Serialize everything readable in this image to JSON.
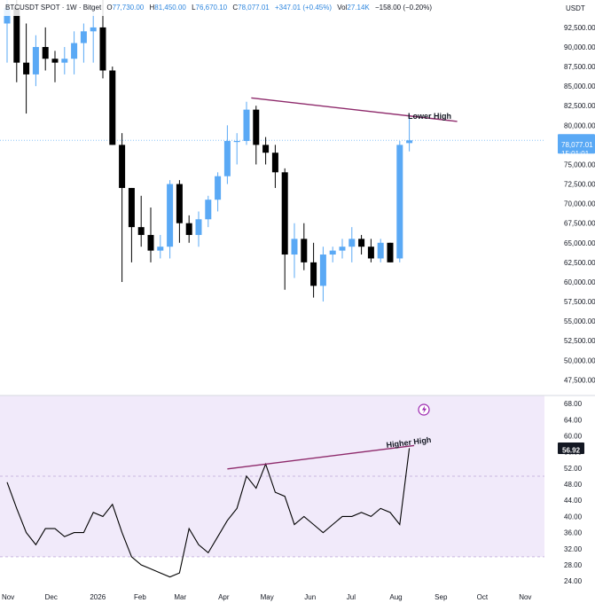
{
  "header": {
    "symbol": "BTCUSDT SPOT · 1W · Bitget",
    "o_label": "O",
    "open": "77,730.00",
    "h_label": "H",
    "high": "81,450.00",
    "l_label": "L",
    "low": "76,670.10",
    "c_label": "C",
    "close": "78,077.01",
    "change": "+347.01 (+0.45%)",
    "vol_label": "Vol",
    "volume": "27.14K",
    "delta": "−158.00 (−0.20%)"
  },
  "currency": "USDT",
  "price_tag": {
    "value": "78,077.01",
    "countdown": "15:01:01",
    "color": "#5aa9f5"
  },
  "rsi_tag": {
    "value": "56.92",
    "color": "#131722"
  },
  "colors": {
    "up": "#5aa9f5",
    "down": "#000000",
    "trendline": "#8e2a6b",
    "rsi_line": "#000000",
    "rsi_band": "#f1eafa"
  },
  "chart_data": [
    {
      "type": "candlestick",
      "title": "BTCUSDT SPOT · 1W · Bitget",
      "y_ticks": [
        47500,
        50000,
        52500,
        55000,
        57500,
        60000,
        62500,
        65000,
        67500,
        70000,
        72500,
        75000,
        77500,
        80000,
        82500,
        85000,
        87500,
        90000,
        92500
      ],
      "ylim": [
        45500,
        96000
      ],
      "x_ticks": [
        {
          "label": "Nov",
          "index": 0
        },
        {
          "label": "Dec",
          "index": 4.5
        },
        {
          "label": "2026",
          "index": 9.2
        },
        {
          "label": "Feb",
          "index": 13.8
        },
        {
          "label": "Mar",
          "index": 18
        },
        {
          "label": "Apr",
          "index": 22.6
        },
        {
          "label": "May",
          "index": 27
        },
        {
          "label": "Jun",
          "index": 31.6
        },
        {
          "label": "Jul",
          "index": 36
        },
        {
          "label": "Aug",
          "index": 40.5
        },
        {
          "label": "Sep",
          "index": 45.2
        },
        {
          "label": "Oct",
          "index": 49.6
        },
        {
          "label": "Nov",
          "index": 54
        }
      ],
      "candles": [
        {
          "o": 93000,
          "h": 98000,
          "l": 88000,
          "c": 95000
        },
        {
          "o": 95000,
          "h": 96000,
          "l": 85500,
          "c": 88000
        },
        {
          "o": 88000,
          "h": 93000,
          "l": 81500,
          "c": 86500
        },
        {
          "o": 86500,
          "h": 91500,
          "l": 85000,
          "c": 90000
        },
        {
          "o": 90000,
          "h": 92500,
          "l": 87000,
          "c": 88500
        },
        {
          "o": 88500,
          "h": 89500,
          "l": 85500,
          "c": 88000
        },
        {
          "o": 88000,
          "h": 90000,
          "l": 86500,
          "c": 88500
        },
        {
          "o": 88500,
          "h": 92000,
          "l": 86500,
          "c": 90500
        },
        {
          "o": 90500,
          "h": 93000,
          "l": 88000,
          "c": 92000
        },
        {
          "o": 92000,
          "h": 94500,
          "l": 88000,
          "c": 92500
        },
        {
          "o": 92500,
          "h": 96000,
          "l": 86000,
          "c": 87000
        },
        {
          "o": 87000,
          "h": 87500,
          "l": 77500,
          "c": 77500
        },
        {
          "o": 77500,
          "h": 79000,
          "l": 60000,
          "c": 72000
        },
        {
          "o": 72000,
          "h": 72000,
          "l": 62500,
          "c": 67000
        },
        {
          "o": 67000,
          "h": 71000,
          "l": 64500,
          "c": 66000
        },
        {
          "o": 66000,
          "h": 69500,
          "l": 62500,
          "c": 64000
        },
        {
          "o": 64000,
          "h": 66000,
          "l": 63000,
          "c": 64500
        },
        {
          "o": 64500,
          "h": 73000,
          "l": 63000,
          "c": 72500
        },
        {
          "o": 72500,
          "h": 73000,
          "l": 65000,
          "c": 67500
        },
        {
          "o": 67500,
          "h": 68500,
          "l": 65000,
          "c": 66000
        },
        {
          "o": 66000,
          "h": 69000,
          "l": 64500,
          "c": 68000
        },
        {
          "o": 68000,
          "h": 71000,
          "l": 67000,
          "c": 70500
        },
        {
          "o": 70500,
          "h": 74000,
          "l": 69000,
          "c": 73500
        },
        {
          "o": 73500,
          "h": 80000,
          "l": 72500,
          "c": 78000
        },
        {
          "o": 78000,
          "h": 79000,
          "l": 75000,
          "c": 78000
        },
        {
          "o": 78000,
          "h": 83000,
          "l": 77500,
          "c": 82000
        },
        {
          "o": 82000,
          "h": 82500,
          "l": 75000,
          "c": 77500
        },
        {
          "o": 77500,
          "h": 78500,
          "l": 75000,
          "c": 76500
        },
        {
          "o": 76500,
          "h": 77500,
          "l": 72000,
          "c": 74000
        },
        {
          "o": 74000,
          "h": 74500,
          "l": 59000,
          "c": 63500
        },
        {
          "o": 63500,
          "h": 67500,
          "l": 60500,
          "c": 65500
        },
        {
          "o": 65500,
          "h": 67500,
          "l": 61500,
          "c": 62500
        },
        {
          "o": 62500,
          "h": 65000,
          "l": 58000,
          "c": 59500
        },
        {
          "o": 59500,
          "h": 64500,
          "l": 57500,
          "c": 63500
        },
        {
          "o": 63500,
          "h": 64500,
          "l": 62500,
          "c": 64000
        },
        {
          "o": 64000,
          "h": 65500,
          "l": 63000,
          "c": 64500
        },
        {
          "o": 64500,
          "h": 67000,
          "l": 62500,
          "c": 65500
        },
        {
          "o": 65500,
          "h": 66000,
          "l": 63500,
          "c": 64500
        },
        {
          "o": 64500,
          "h": 65500,
          "l": 62500,
          "c": 63000
        },
        {
          "o": 63000,
          "h": 65500,
          "l": 62500,
          "c": 65000
        },
        {
          "o": 65000,
          "h": 65000,
          "l": 62500,
          "c": 62500
        },
        {
          "o": 63000,
          "h": 78000,
          "l": 62500,
          "c": 77500
        },
        {
          "o": 77730,
          "h": 81450,
          "l": 76670.1,
          "c": 78077.01
        }
      ],
      "trendline": {
        "label": "Lower High",
        "from": {
          "index": 25.5,
          "value": 83500
        },
        "to": {
          "index": 47,
          "value": 80500
        }
      }
    },
    {
      "type": "line",
      "title": "",
      "y_ticks": [
        24.0,
        28.0,
        32.0,
        36.0,
        40.0,
        44.0,
        48.0,
        52.0,
        56.0,
        60.0,
        64.0,
        68.0
      ],
      "ylim": [
        22.5,
        70
      ],
      "band": [
        30,
        70
      ],
      "series": [
        {
          "name": "",
          "values": [
            48.5,
            42,
            36,
            33,
            37,
            37,
            35,
            36,
            36,
            41,
            40,
            43,
            36,
            30,
            28,
            27,
            26,
            25,
            26,
            37,
            33,
            31,
            35,
            39,
            42,
            50,
            47,
            53,
            46,
            45,
            38,
            40,
            38,
            36,
            38,
            40,
            40,
            41,
            40,
            42,
            41,
            38,
            56.92
          ]
        }
      ],
      "trendline": {
        "label": "Higher High",
        "from": {
          "index": 23,
          "value": 51.8
        },
        "to": {
          "index": 42.5,
          "value": 57.6
        }
      }
    }
  ]
}
